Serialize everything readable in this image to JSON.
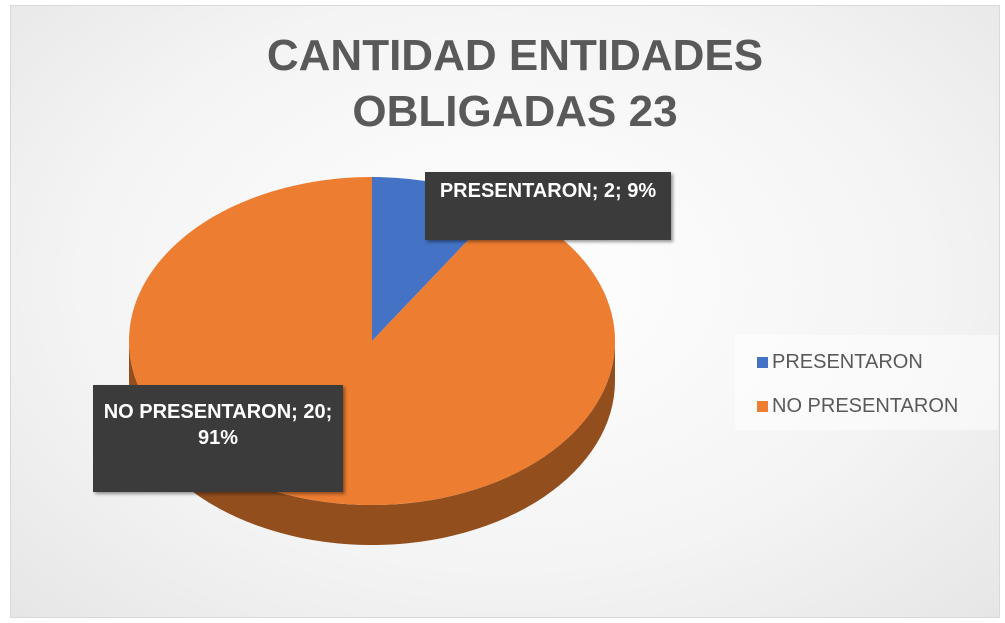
{
  "chart_data": {
    "type": "pie",
    "title": "CANTIDAD ENTIDADES OBLIGADAS 23",
    "categories": [
      "PRESENTARON",
      "NO PRESENTARON"
    ],
    "values": [
      2,
      20
    ],
    "value_labels": [
      "PRESENTARON; 2; 9%",
      "NO PRESENTARON; 20; 91%"
    ],
    "colors": [
      "#4472c4",
      "#ed7d31"
    ],
    "legend": "right"
  }
}
